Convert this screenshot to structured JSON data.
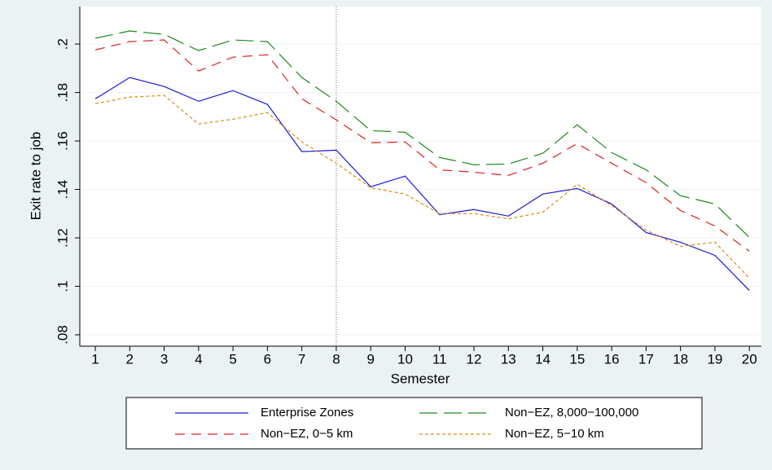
{
  "chart_data": {
    "type": "line",
    "x_label": "Semester",
    "y_label": "Exit rate to job",
    "x": [
      1,
      2,
      3,
      4,
      5,
      6,
      7,
      8,
      9,
      10,
      11,
      12,
      13,
      14,
      15,
      16,
      17,
      18,
      19,
      20
    ],
    "xlim": [
      0.55,
      20.35
    ],
    "xticks": [
      1,
      2,
      3,
      4,
      5,
      6,
      7,
      8,
      9,
      10,
      11,
      12,
      13,
      14,
      15,
      16,
      17,
      18,
      19,
      20
    ],
    "ylim": [
      0.0753,
      0.2155
    ],
    "yticks": [
      {
        "value": 0.08,
        "label": ".08"
      },
      {
        "value": 0.1,
        "label": ".1"
      },
      {
        "value": 0.12,
        "label": ".12"
      },
      {
        "value": 0.14,
        "label": ".14"
      },
      {
        "value": 0.16,
        "label": ".16"
      },
      {
        "value": 0.18,
        "label": ".18"
      },
      {
        "value": 0.2,
        "label": ".2"
      }
    ],
    "grid": true,
    "vline": 8,
    "series": [
      {
        "name": "Enterprise Zones",
        "color": "#1a1adc",
        "style": "solid",
        "values": [
          0.1774,
          0.1862,
          0.1825,
          0.1764,
          0.1808,
          0.1751,
          0.1556,
          0.1562,
          0.1411,
          0.1455,
          0.1296,
          0.1317,
          0.129,
          0.1381,
          0.1404,
          0.134,
          0.1222,
          0.1182,
          0.1128,
          0.0983
        ]
      },
      {
        "name": "Non−EZ, 8,000−100,000",
        "color": "#1a8a1a",
        "style": "longdash",
        "values": [
          0.2024,
          0.2054,
          0.204,
          0.1973,
          0.2017,
          0.201,
          0.1862,
          0.1764,
          0.1643,
          0.1636,
          0.1532,
          0.1502,
          0.1505,
          0.1549,
          0.1667,
          0.1552,
          0.1481,
          0.1374,
          0.134,
          0.1202
        ]
      },
      {
        "name": "Non−EZ, 0−5 km",
        "color": "#e02020",
        "style": "dash",
        "values": [
          0.1976,
          0.201,
          0.2017,
          0.1889,
          0.1946,
          0.1956,
          0.1774,
          0.1687,
          0.1593,
          0.1596,
          0.1481,
          0.1471,
          0.1458,
          0.1508,
          0.1589,
          0.1508,
          0.1428,
          0.1313,
          0.1249,
          0.1145
        ]
      },
      {
        "name": "Non−EZ, 5−10 km",
        "color": "#e08a10",
        "style": "shortdash",
        "values": [
          0.1754,
          0.1781,
          0.1788,
          0.167,
          0.169,
          0.1717,
          0.1596,
          0.1508,
          0.1407,
          0.1381,
          0.13,
          0.13,
          0.1279,
          0.1306,
          0.1421,
          0.1333,
          0.1232,
          0.1165,
          0.1182,
          0.1034
        ]
      }
    ]
  }
}
